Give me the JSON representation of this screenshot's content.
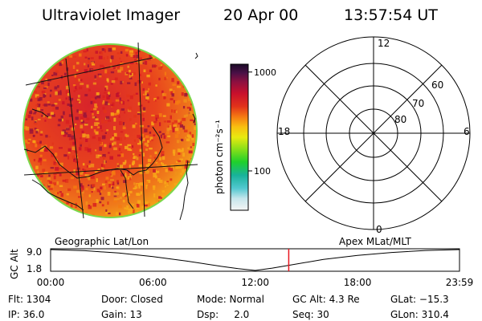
{
  "header": {
    "instrument": "Ultraviolet Imager",
    "date": "20 Apr 00",
    "time": "13:57:54 UT"
  },
  "colorbar": {
    "unit": "photon cm⁻²s⁻¹",
    "ticks": [
      "1000",
      "100"
    ],
    "scale": "log",
    "range": [
      40,
      1200
    ]
  },
  "polar_plot": {
    "mlt_labels": {
      "top": "12",
      "left": "18",
      "right": "6",
      "bottom": "0"
    },
    "lat_labels": [
      "60",
      "70",
      "80"
    ]
  },
  "timeline": {
    "left_title": "Geographic Lat/Lon",
    "right_title": "Apex MLat/MLT",
    "y_axis_label": "GC Alt",
    "y_ticks": [
      "9.0",
      "1.8"
    ],
    "x_ticks": [
      "00:00",
      "06:00",
      "12:00",
      "18:00",
      "23:59"
    ],
    "current_time_hours": 13.965,
    "orbit_curve": {
      "hours": [
        0.0,
        2.0,
        4.0,
        6.0,
        8.0,
        10.0,
        11.0,
        12.0,
        13.0,
        14.0,
        16.0,
        18.0,
        20.0,
        22.0,
        23.98
      ],
      "alt": [
        9.0,
        8.6,
        7.8,
        6.6,
        5.0,
        3.2,
        2.4,
        1.8,
        2.6,
        3.6,
        5.6,
        7.0,
        8.0,
        8.7,
        9.0
      ]
    },
    "marker_color": "#e8171f"
  },
  "info_rows": [
    [
      "Flt: 1304",
      "Door: Closed",
      "Mode: Normal",
      "GC Alt: 4.3 Re",
      "GLat: −15.3"
    ],
    [
      "IP: 36.0",
      "Gain: 13",
      "Dsp:     2.0",
      "Seq: 30",
      "GLon: 310.4"
    ]
  ]
}
